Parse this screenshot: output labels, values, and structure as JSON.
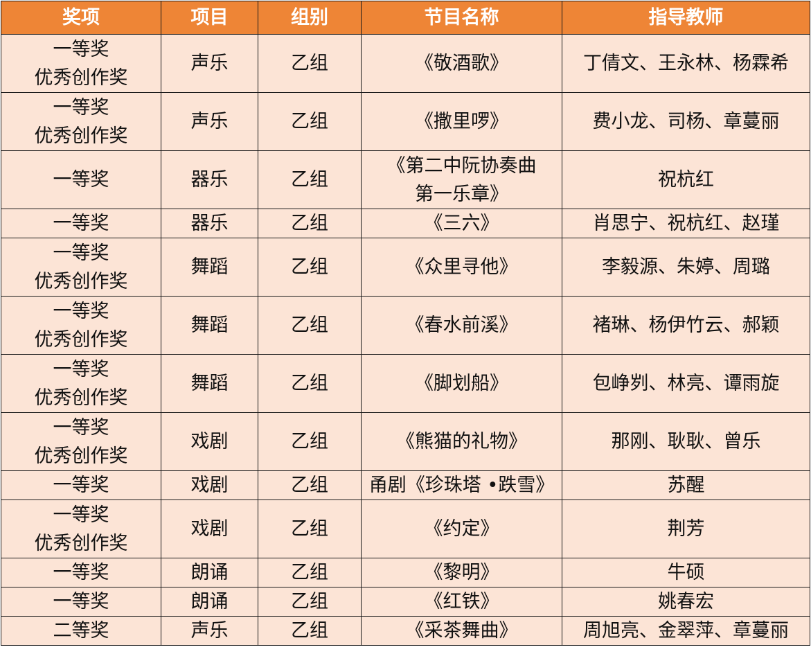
{
  "colors": {
    "header_bg": "#EE8536",
    "header_text": "#FFFFFF",
    "cell_bg": "#FCE4D6"
  },
  "headers": [
    "奖项",
    "项目",
    "组别",
    "节目名称",
    "指导教师"
  ],
  "rows": [
    {
      "award": [
        "一等奖",
        "优秀创作奖"
      ],
      "category": "声乐",
      "group": "乙组",
      "program": [
        "《敬酒歌》"
      ],
      "teachers": "丁倩文、王永林、杨霖希"
    },
    {
      "award": [
        "一等奖",
        "优秀创作奖"
      ],
      "category": "声乐",
      "group": "乙组",
      "program": [
        "《撒里啰》"
      ],
      "teachers": "费小龙、司杨、章蔓丽"
    },
    {
      "award": [
        "一等奖"
      ],
      "category": "器乐",
      "group": "乙组",
      "program": [
        "《第二中阮协奏曲",
        "第一乐章》"
      ],
      "teachers": "祝杭红"
    },
    {
      "award": [
        "一等奖"
      ],
      "category": "器乐",
      "group": "乙组",
      "program": [
        "《三六》"
      ],
      "teachers": "肖思宁、祝杭红、赵瑾"
    },
    {
      "award": [
        "一等奖",
        "优秀创作奖"
      ],
      "category": "舞蹈",
      "group": "乙组",
      "program": [
        "《众里寻他》"
      ],
      "teachers": "李毅源、朱婷、周璐"
    },
    {
      "award": [
        "一等奖",
        "优秀创作奖"
      ],
      "category": "舞蹈",
      "group": "乙组",
      "program": [
        "《春水前溪》"
      ],
      "teachers": "褚琳、杨伊竹云、郝颖"
    },
    {
      "award": [
        "一等奖",
        "优秀创作奖"
      ],
      "category": "舞蹈",
      "group": "乙组",
      "program": [
        "《脚划船》"
      ],
      "teachers": "包峥刿、林亮、谭雨旋"
    },
    {
      "award": [
        "一等奖",
        "优秀创作奖"
      ],
      "category": "戏剧",
      "group": "乙组",
      "program": [
        "《熊猫的礼物》"
      ],
      "teachers": "那刚、耿耿、曾乐"
    },
    {
      "award": [
        "一等奖"
      ],
      "category": "戏剧",
      "group": "乙组",
      "program": [
        "甬剧《珍珠塔 •跌雪》"
      ],
      "teachers": "苏醒"
    },
    {
      "award": [
        "一等奖",
        "优秀创作奖"
      ],
      "category": "戏剧",
      "group": "乙组",
      "program": [
        "《约定》"
      ],
      "teachers": "荆芳"
    },
    {
      "award": [
        "一等奖"
      ],
      "category": "朗诵",
      "group": "乙组",
      "program": [
        "《黎明》"
      ],
      "teachers": "牛硕"
    },
    {
      "award": [
        "一等奖"
      ],
      "category": "朗诵",
      "group": "乙组",
      "program": [
        "《红铁》"
      ],
      "teachers": "姚春宏"
    },
    {
      "award": [
        "二等奖"
      ],
      "category": "声乐",
      "group": "乙组",
      "program": [
        "《采茶舞曲》"
      ],
      "teachers": "周旭亮、金翠萍、章蔓丽"
    }
  ]
}
